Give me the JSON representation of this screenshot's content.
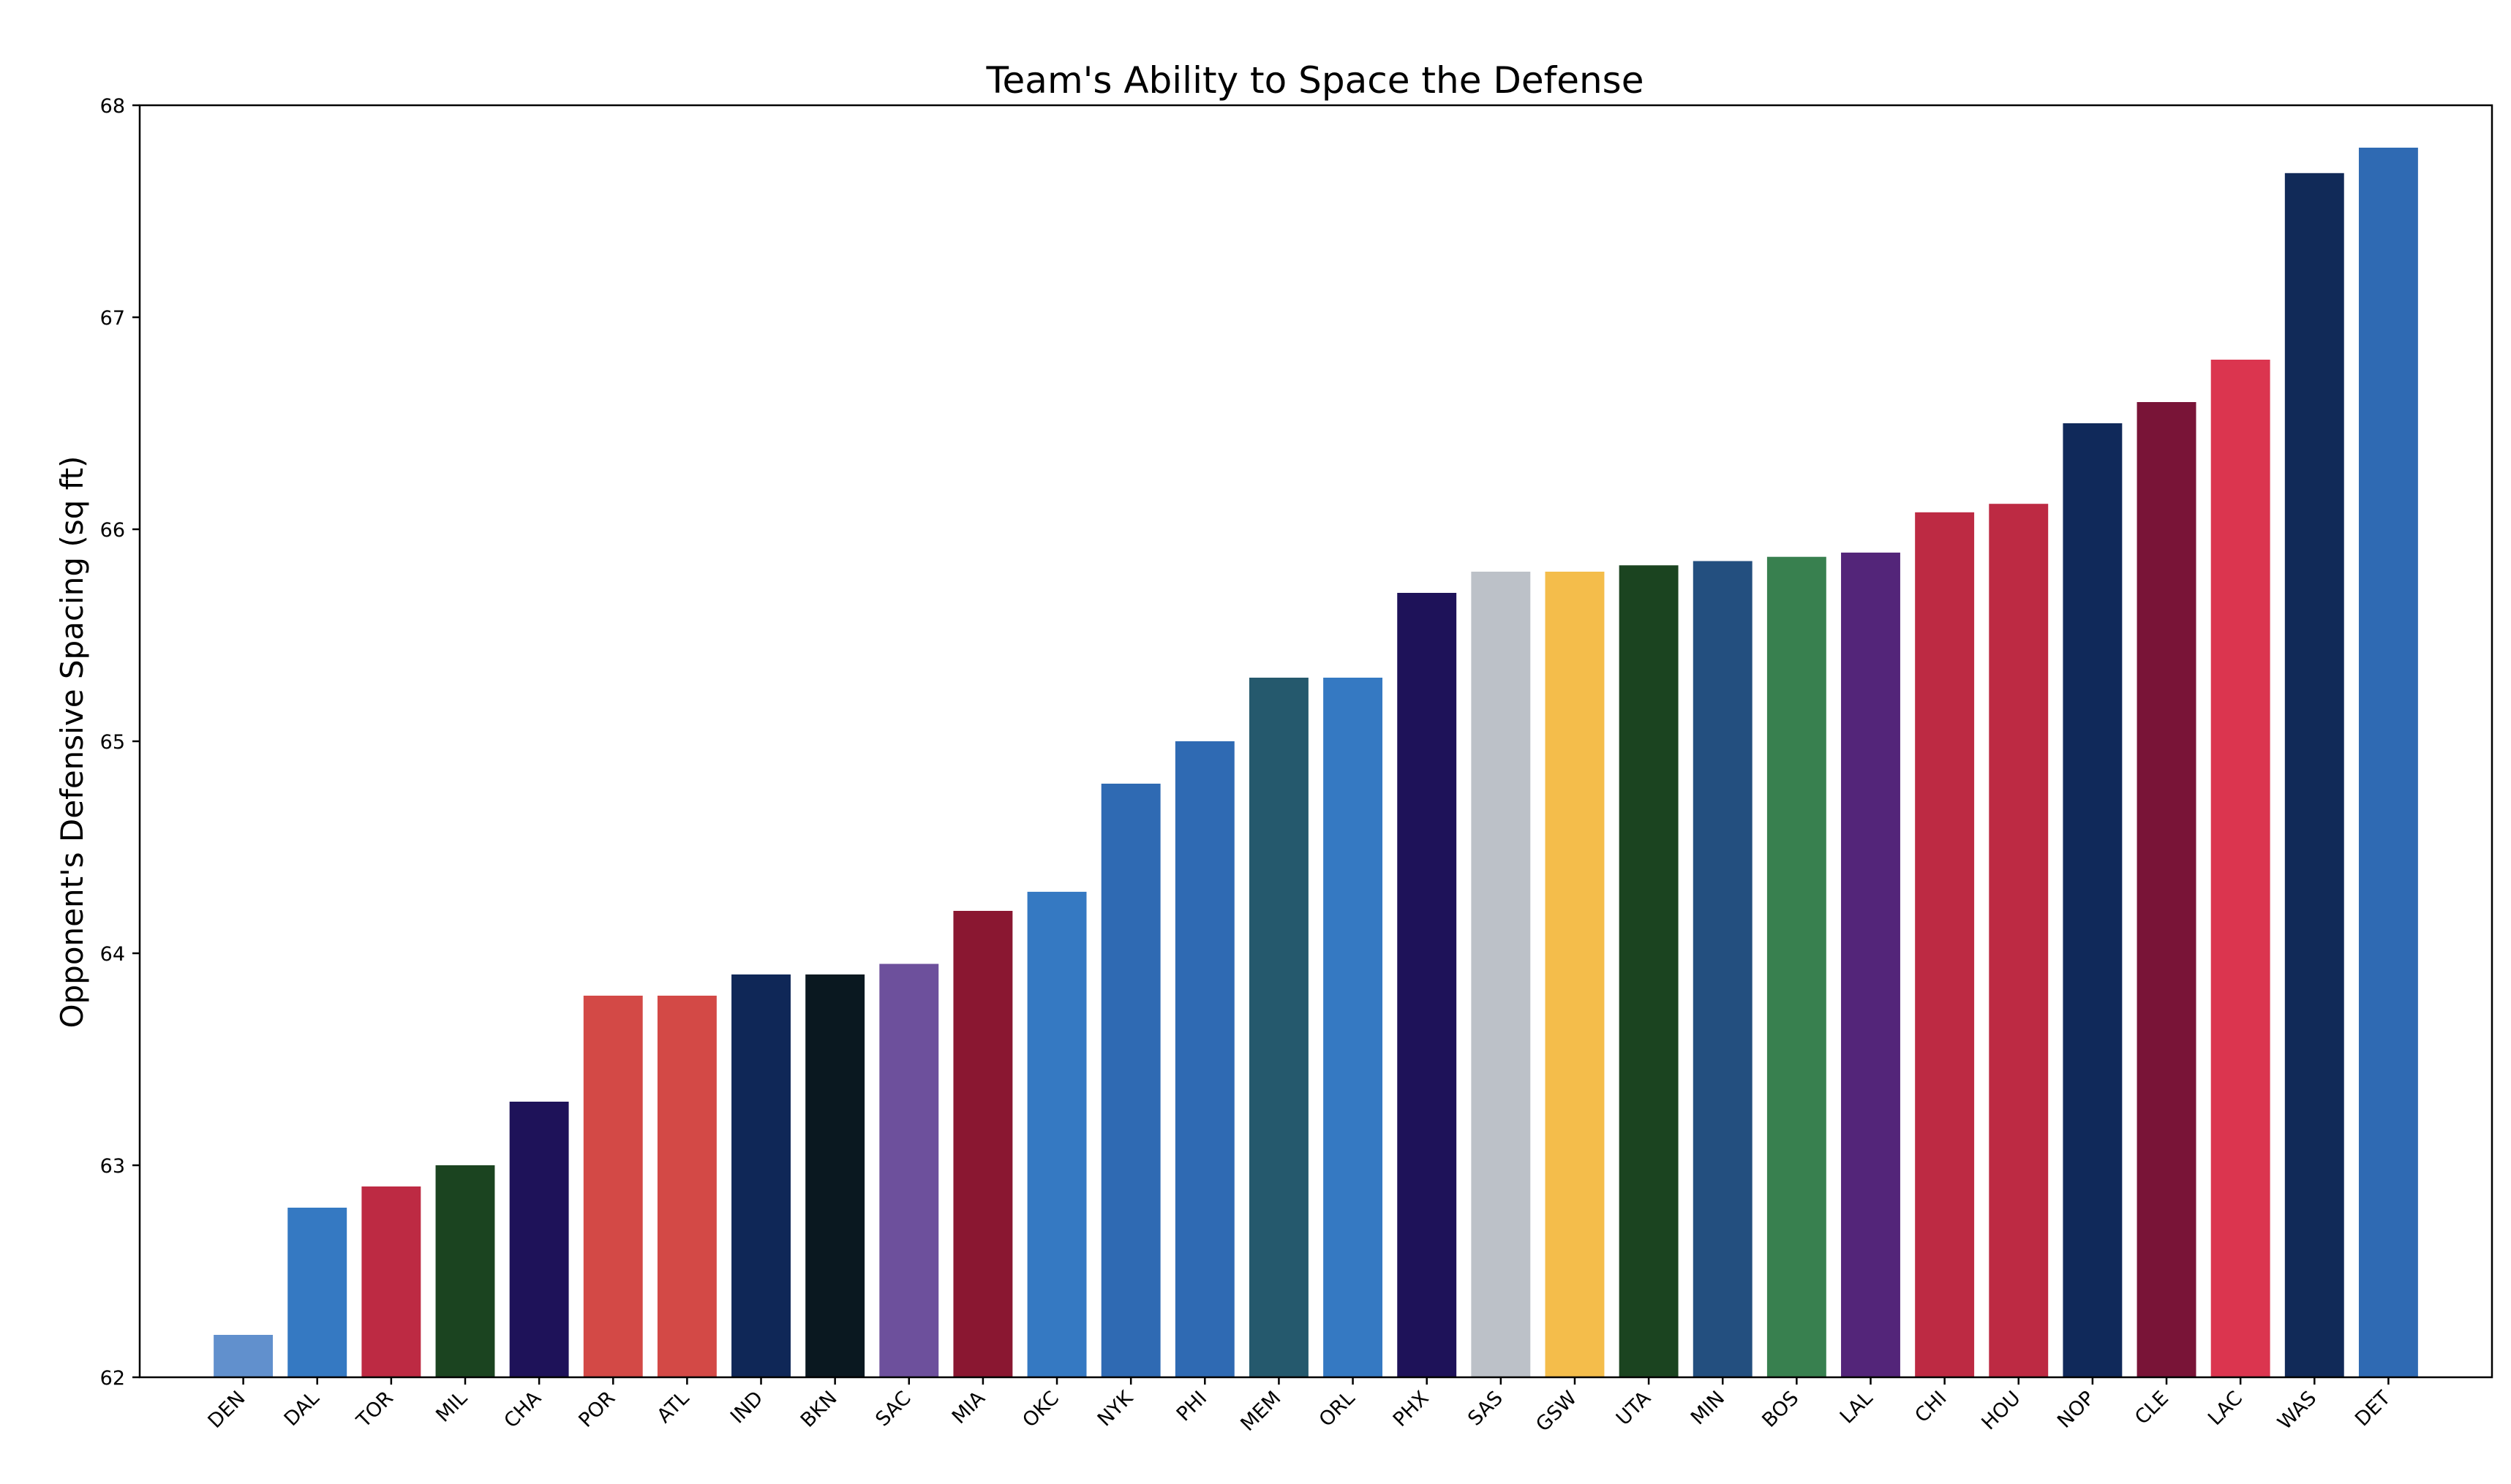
{
  "chart_data": {
    "type": "bar",
    "title": "Team's Ability to Space the Defense",
    "xlabel": "",
    "ylabel": "Opponent's Defensive Spacing (sq ft)",
    "ylim": [
      62,
      68
    ],
    "yticks": [
      62,
      63,
      64,
      65,
      66,
      67,
      68
    ],
    "grid": false,
    "categories": [
      "DEN",
      "DAL",
      "TOR",
      "MIL",
      "CHA",
      "POR",
      "ATL",
      "IND",
      "BKN",
      "SAC",
      "MIA",
      "OKC",
      "NYK",
      "PHI",
      "MEM",
      "ORL",
      "PHX",
      "SAS",
      "GSW",
      "UTA",
      "MIN",
      "BOS",
      "LAL",
      "CHI",
      "HOU",
      "NOP",
      "CLE",
      "LAC",
      "WAS",
      "DET"
    ],
    "values": [
      62.2,
      62.8,
      62.9,
      63.0,
      63.3,
      63.8,
      63.8,
      63.9,
      63.9,
      63.95,
      64.2,
      64.29,
      64.8,
      65.0,
      65.3,
      65.3,
      65.7,
      65.8,
      65.8,
      65.83,
      65.85,
      65.87,
      65.89,
      66.08,
      66.12,
      66.5,
      66.6,
      66.8,
      67.68,
      67.8
    ],
    "colors": [
      "#6190CD",
      "#3579C2",
      "#BD2A43",
      "#1B4420",
      "#1E1259",
      "#D34946",
      "#D34946",
      "#0F2757",
      "#0A1820",
      "#6D509C",
      "#8A1731",
      "#3579C2",
      "#2F6AB3",
      "#2F6AB3",
      "#25596D",
      "#3579C2",
      "#1E1259",
      "#BCC1C8",
      "#F4BD4B",
      "#1B4420",
      "#234F7F",
      "#38804F",
      "#532579",
      "#BD2A43",
      "#BD2A43",
      "#10295A",
      "#791437",
      "#DB354F",
      "#112A58",
      "#2F6AB3"
    ]
  }
}
